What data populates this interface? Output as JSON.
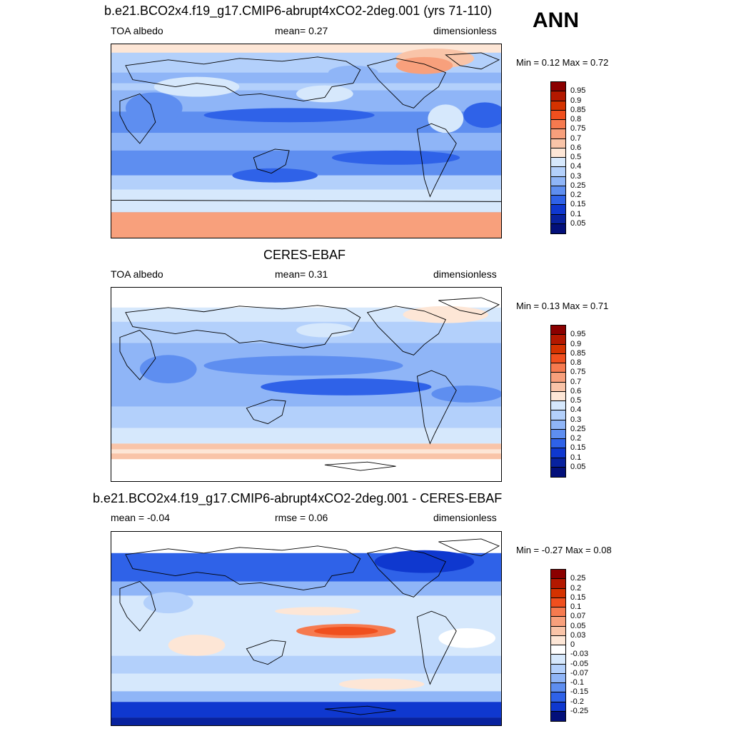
{
  "season": "ANN",
  "panels": [
    {
      "id": "model",
      "title": "b.e21.BCO2x4.f19_g17.CMIP6-abrupt4xCO2-2deg.001 (yrs 71-110)",
      "left_label": "TOA albedo",
      "center_label": "mean=   0.27",
      "right_label": "dimensionless",
      "minmax": "Min =   0.12 Max =   0.72",
      "colorbar": {
        "labels": [
          "0.95",
          "0.9",
          "0.85",
          "0.8",
          "0.75",
          "0.7",
          "0.6",
          "0.5",
          "0.4",
          "0.3",
          "0.25",
          "0.2",
          "0.15",
          "0.1",
          "0.05"
        ],
        "colors": [
          "#8b0000",
          "#b31800",
          "#d43200",
          "#f04f1e",
          "#f67a4f",
          "#f8a07c",
          "#f9c4a8",
          "#fde6d6",
          "#d6e8fc",
          "#b3d0fb",
          "#8fb5f7",
          "#5e8ef0",
          "#2f62e8",
          "#0f38cf",
          "#08229e",
          "#03107a"
        ]
      }
    },
    {
      "id": "obs",
      "title": "CERES-EBAF",
      "left_label": "TOA albedo",
      "center_label": "mean=   0.31",
      "right_label": "dimensionless",
      "minmax": "Min =   0.13 Max =   0.71",
      "colorbar": {
        "labels": [
          "0.95",
          "0.9",
          "0.85",
          "0.8",
          "0.75",
          "0.7",
          "0.6",
          "0.5",
          "0.4",
          "0.3",
          "0.25",
          "0.2",
          "0.15",
          "0.1",
          "0.05"
        ],
        "colors": [
          "#8b0000",
          "#b31800",
          "#d43200",
          "#f04f1e",
          "#f67a4f",
          "#f8a07c",
          "#f9c4a8",
          "#fde6d6",
          "#d6e8fc",
          "#b3d0fb",
          "#8fb5f7",
          "#5e8ef0",
          "#2f62e8",
          "#0f38cf",
          "#08229e",
          "#03107a"
        ]
      }
    },
    {
      "id": "diff",
      "title": "b.e21.BCO2x4.f19_g17.CMIP6-abrupt4xCO2-2deg.001 - CERES-EBAF",
      "left_label": "mean =  -0.04",
      "center_label": "rmse =   0.06",
      "right_label": "dimensionless",
      "minmax": "Min =  -0.27 Max =   0.08",
      "colorbar": {
        "labels": [
          "0.25",
          "0.2",
          "0.15",
          "0.1",
          "0.07",
          "0.05",
          "0.03",
          "0",
          "-0.03",
          "-0.05",
          "-0.07",
          "-0.1",
          "-0.15",
          "-0.2",
          "-0.25"
        ],
        "colors": [
          "#8b0000",
          "#b31800",
          "#d43200",
          "#f04f1e",
          "#f67a4f",
          "#f8a07c",
          "#f9c4a8",
          "#fde6d6",
          "#ffffff",
          "#d6e8fc",
          "#b3d0fb",
          "#8fb5f7",
          "#5e8ef0",
          "#2f62e8",
          "#0f38cf",
          "#03107a"
        ]
      }
    }
  ]
}
